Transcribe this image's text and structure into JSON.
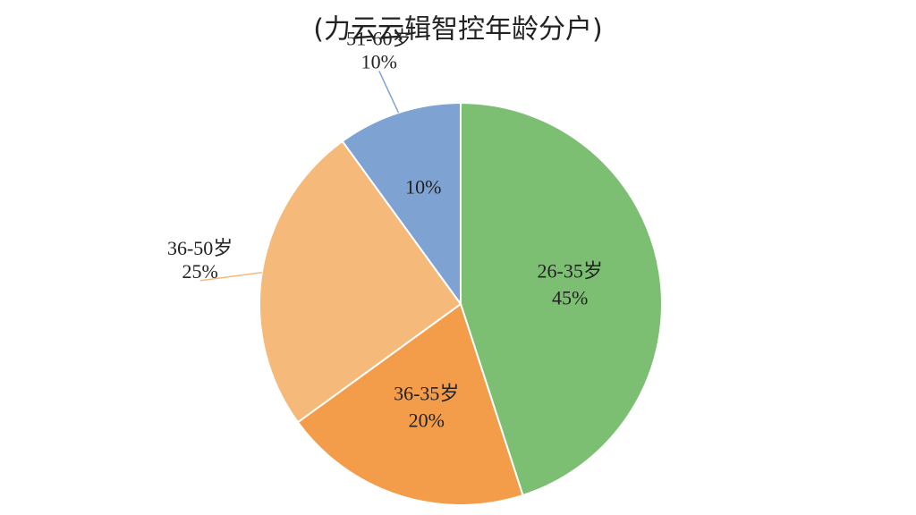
{
  "chart_data": {
    "type": "pie",
    "title": "(力云云辑智控年龄分户)",
    "categories": [
      "26-35岁",
      "36-35岁",
      "36-50岁",
      "51-60岁"
    ],
    "values": [
      45,
      20,
      25,
      10
    ],
    "value_labels": [
      "45%",
      "20%",
      "25%",
      "10%"
    ],
    "colors": [
      "#7dbf72",
      "#f39c4a",
      "#f5b97a",
      "#7ea3d3"
    ]
  }
}
